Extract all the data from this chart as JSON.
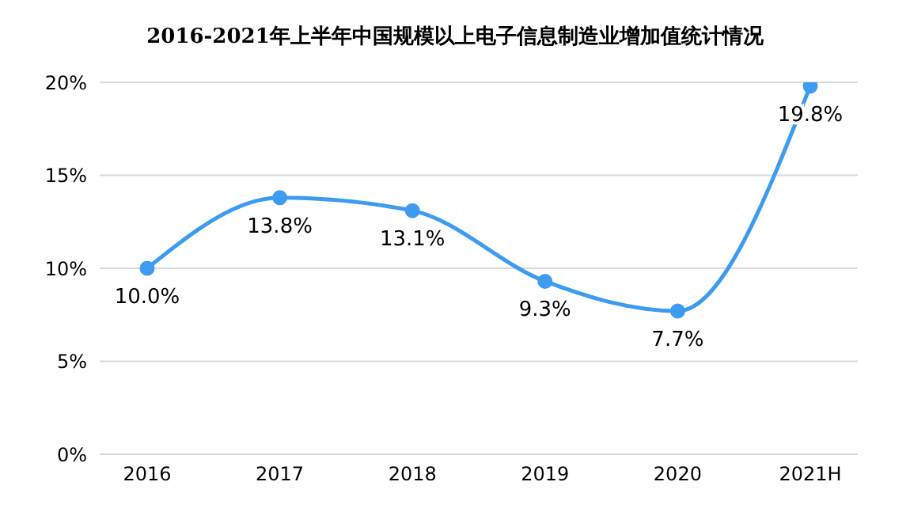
{
  "chart_data": {
    "type": "line",
    "title": "2016-2021年上半年中国规模以上电子信息制造业增加值统计情况",
    "categories": [
      "2016",
      "2017",
      "2018",
      "2019",
      "2020",
      "2021H"
    ],
    "series": [
      {
        "color": "#3d9cf0",
        "values": [
          10.0,
          13.8,
          13.1,
          9.3,
          7.7,
          19.8
        ],
        "value_labels": [
          "10.0%",
          "13.8%",
          "13.1%",
          "9.3%",
          "7.7%",
          "19.8%"
        ]
      }
    ],
    "ylim": [
      0,
      20
    ],
    "yticks": [
      {
        "value": 0,
        "label": "0%"
      },
      {
        "value": 5,
        "label": "5%"
      },
      {
        "value": 10,
        "label": "10%"
      },
      {
        "value": 15,
        "label": "15%"
      },
      {
        "value": 20,
        "label": "20%"
      }
    ],
    "grid": "y",
    "marker": "circle",
    "line_style": "solid"
  }
}
